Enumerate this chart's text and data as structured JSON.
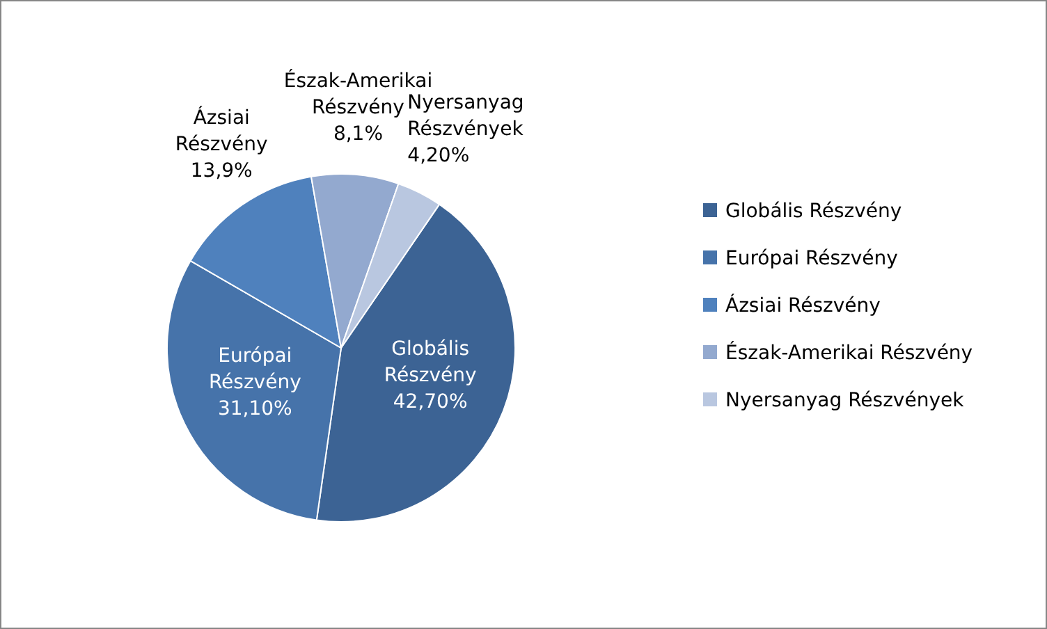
{
  "chart_data": {
    "type": "pie",
    "categories": [
      "Globális Részvény",
      "Európai Részvény",
      "Ázsiai Részvény",
      "Észak-Amerikai Részvény",
      "Nyersanyag Részvények"
    ],
    "values": [
      42.7,
      31.1,
      13.9,
      8.1,
      4.2
    ],
    "value_labels": [
      "42,70%",
      "31,10%",
      "13,9%",
      "8,1%",
      "4,20%"
    ],
    "colors": [
      "#3c6394",
      "#4673aa",
      "#4f81bd",
      "#93a9cf",
      "#b9c7e0"
    ],
    "legend": "right"
  }
}
